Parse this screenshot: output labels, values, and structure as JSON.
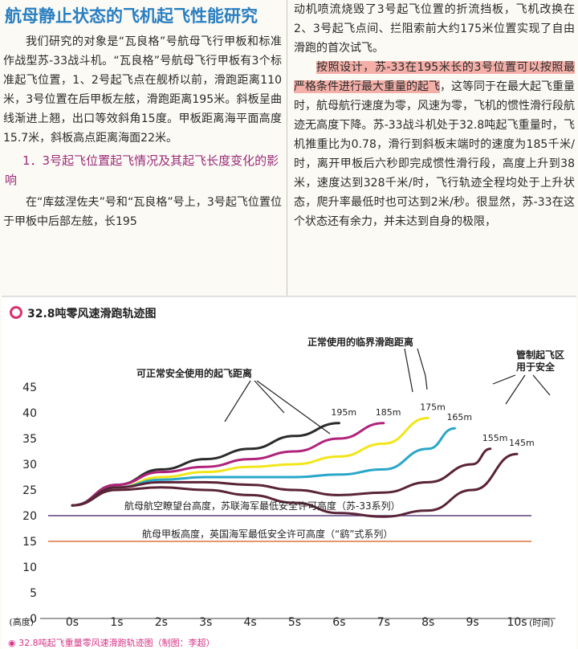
{
  "article": {
    "title": "航母静止状态的飞机起飞性能研究",
    "left_paragraph1": "我们研究的对象是“瓦良格”号航母飞行甲板和标准作战型苏-33战斗机。“瓦良格”号航母飞行甲板有3个标准起飞位置，1、2号起飞点在舰桥以前，滑跑距离110米，3号位置在后甲板左舷，滑跑距离195米。斜板呈曲线渐进上翘，出口等效斜角15度。甲板距离海平面高度15.7米，斜板高点距离海面22米。",
    "subheading": "1．3号起飞位置起飞情况及其起飞长度变化的影响",
    "left_paragraph2": "在“库兹涅佐夫”号和“瓦良格”号上，3号起飞位置位于甲板中后部左舷，长195",
    "right_paragraph1": "动机喷流烧毁了3号起飞位置的折流挡板，飞机改换在2、3号起飞点间、拦阻索前大约175米位置实现了自由滑跑的首次试飞。",
    "right_highlight": "按照设计，苏-33在195米长的3号位置可以按照最严格条件进行最大重量的起飞",
    "right_paragraph2": "，这等同于在最大起飞重量时，航母航行速度为零，风速为零，飞机的惯性滑行段航迹无高度下降。苏-33战斗机处于32.8吨起飞重量时，飞机推重比为0.78，滑行到斜板末端时的速度为185千米/时，离开甲板后六秒即完成惯性滑行段，高度上升到38米，速度达到328千米/时，飞行轨迹全程均处于上升状态，爬升率最低时也可达到2米/秒。很显然，苏-33在这个状态还有余力，并未达到自身的极限，"
  },
  "figure": {
    "title": "32.8吨零风速滑跑轨迹图",
    "caption": "32.8吨起飞重量零风速滑跑轨迹图（制图：李超）",
    "annotations": {
      "safe_distance": "可正常安全使用的起飞距离",
      "critical_distance": "正常使用的临界滑跑距离",
      "controlled_zone_line1": "管制起飞区",
      "controlled_zone_line2": "用于安全",
      "line_20_label": "航母航空瞭望台高度，苏联海军最低安全许可高度（苏-33系列）",
      "line_15_label": "航母甲板高度，英国海军最低安全许可高度（“鹞”式系列）"
    }
  },
  "chart_data": {
    "type": "line",
    "title": "32.8吨零风速滑跑轨迹图",
    "ylabel": "(高度)",
    "xlabel": "(时间)",
    "ylim": [
      0,
      45
    ],
    "yticks": [
      0,
      5,
      10,
      15,
      20,
      25,
      30,
      35,
      40,
      45
    ],
    "xlim": [
      0,
      10
    ],
    "xticks": [
      "0s",
      "1s",
      "2s",
      "3s",
      "4s",
      "5s",
      "6s",
      "7s",
      "8s",
      "9s",
      "10s"
    ],
    "reference_lines": [
      {
        "y": 20,
        "color": "#5b3f7a"
      },
      {
        "y": 15,
        "color": "#e0713c"
      }
    ],
    "series": [
      {
        "name": "195m",
        "color": "#2b2b2b",
        "x": [
          0,
          1,
          2,
          3,
          4,
          5,
          6
        ],
        "y": [
          22,
          26,
          29,
          31,
          33,
          35.5,
          38
        ]
      },
      {
        "name": "185m",
        "color": "#b0237a",
        "x": [
          0,
          1,
          2,
          3,
          4,
          5,
          6,
          7
        ],
        "y": [
          22,
          26,
          28.5,
          29.5,
          31,
          32.5,
          35,
          38
        ]
      },
      {
        "name": "175m",
        "color": "#f2e61a",
        "x": [
          0,
          1,
          2,
          3,
          4,
          5,
          6,
          7,
          8
        ],
        "y": [
          22,
          25.5,
          27.5,
          28.5,
          29.5,
          30,
          31.5,
          34,
          39
        ]
      },
      {
        "name": "165m",
        "color": "#2aa6c9",
        "x": [
          0,
          1,
          2,
          3,
          4,
          5,
          6,
          7,
          8,
          8.6
        ],
        "y": [
          22,
          25.5,
          27,
          27.5,
          27.5,
          27.5,
          28,
          29,
          33,
          37
        ]
      },
      {
        "name": "155m",
        "color": "#5a2438",
        "x": [
          0,
          1,
          2,
          3,
          4,
          5,
          6,
          7,
          8,
          9,
          9.4
        ],
        "y": [
          22,
          25.5,
          26.5,
          26.5,
          26,
          25,
          24,
          24.5,
          26.5,
          30,
          33
        ]
      },
      {
        "name": "145m",
        "color": "#5a2438",
        "x": [
          0,
          1,
          2,
          3,
          4,
          5,
          6,
          7,
          8,
          9,
          10
        ],
        "y": [
          22,
          25,
          25.5,
          25,
          24,
          22.5,
          20.5,
          19.8,
          21,
          25,
          32
        ]
      }
    ]
  }
}
